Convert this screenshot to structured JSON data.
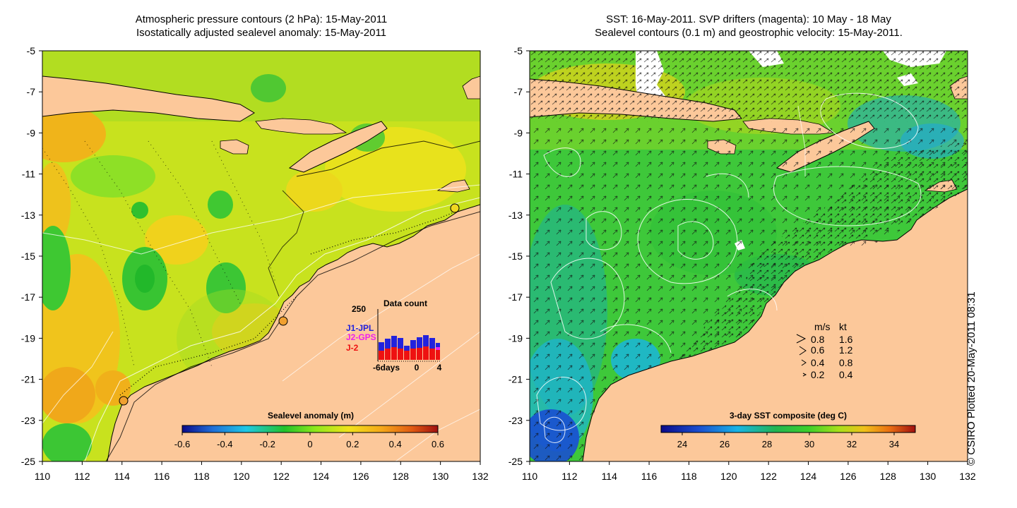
{
  "left_panel": {
    "title_line1": "Atmospheric pressure contours (2 hPa): 15-May-2011",
    "title_line2": "Isostatically adjusted sealevel anomaly: 15-May-2011",
    "x_ticks": [
      "110",
      "112",
      "114",
      "116",
      "118",
      "120",
      "122",
      "124",
      "126",
      "128",
      "130",
      "132"
    ],
    "y_ticks": [
      "-5",
      "-7",
      "-9",
      "-11",
      "-13",
      "-15",
      "-17",
      "-19",
      "-21",
      "-23",
      "-25"
    ],
    "colorbar": {
      "title": "Sealevel anomaly (m)",
      "ticks": [
        "-0.6",
        "-0.4",
        "-0.2",
        "0",
        "0.2",
        "0.4",
        "0.6"
      ],
      "range": [
        -0.6,
        0.6
      ]
    },
    "inset": {
      "title": "Data count",
      "ymax_label": "250",
      "x_labels": [
        "-6days",
        "0",
        "4"
      ],
      "legend": [
        {
          "label": "J1-JPL",
          "color": "#2222dd"
        },
        {
          "label": "J2-GPS",
          "color": "#ee22ee"
        },
        {
          "label": "J-2",
          "color": "#ee1111"
        }
      ]
    }
  },
  "right_panel": {
    "title_line1": "SST: 16-May-2011. SVP drifters (magenta): 10 May - 18 May",
    "title_line2": "Sealevel contours (0.1 m) and geostrophic velocity: 15-May-2011.",
    "x_ticks": [
      "110",
      "112",
      "114",
      "116",
      "118",
      "120",
      "122",
      "124",
      "126",
      "128",
      "130",
      "132"
    ],
    "y_ticks": [
      "-5",
      "-7",
      "-9",
      "-11",
      "-13",
      "-15",
      "-17",
      "-19",
      "-21",
      "-23",
      "-25"
    ],
    "colorbar": {
      "title": "3-day SST composite (deg C)",
      "ticks": [
        "24",
        "26",
        "28",
        "30",
        "32",
        "34"
      ],
      "range": [
        23,
        35
      ]
    },
    "velocity_legend": {
      "header_ms": "m/s",
      "header_kt": "kt",
      "rows": [
        {
          "ms": "0.8",
          "kt": "1.6"
        },
        {
          "ms": "0.6",
          "kt": "1.2"
        },
        {
          "ms": "0.4",
          "kt": "0.8"
        },
        {
          "ms": "0.2",
          "kt": "0.4"
        }
      ]
    }
  },
  "credit": "© CSIRO Plotted 20-May-2011 08:31",
  "colors": {
    "land": "#fcc89a",
    "sla_ramp": [
      "#0a0a8a",
      "#1f6fd8",
      "#1fc8e6",
      "#22c22a",
      "#8ee81c",
      "#f0e21a",
      "#f5a81a",
      "#e05a12",
      "#a01010"
    ],
    "sst_ramp": [
      "#0a0a8a",
      "#1a4fd0",
      "#18b4e6",
      "#22b452",
      "#3ecf2a",
      "#a8e01a",
      "#f0c01a",
      "#ea6e12",
      "#a01010"
    ]
  }
}
